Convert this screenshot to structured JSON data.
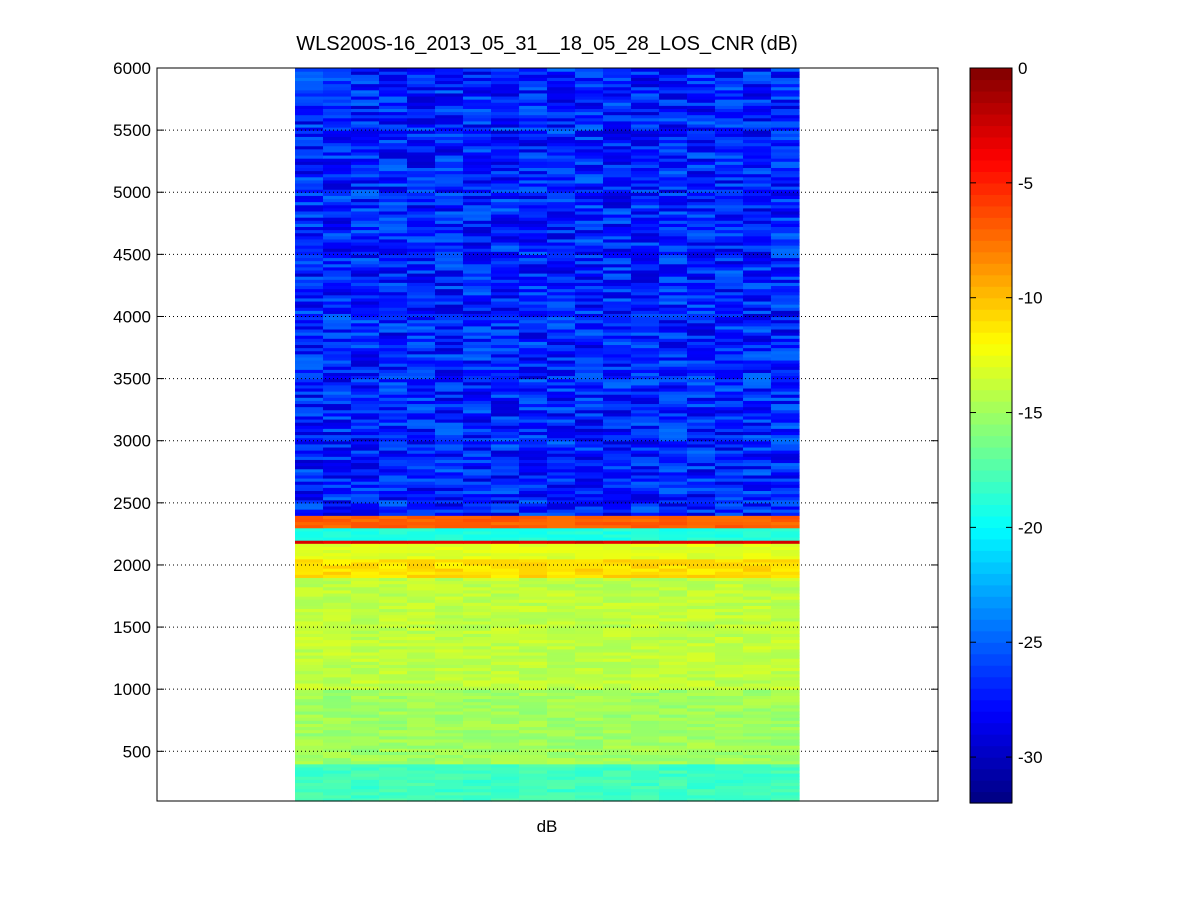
{
  "chart_data": {
    "type": "heatmap",
    "title": "WLS200S-16_2013_05_31__18_05_28_LOS_CNR (dB)",
    "xlabel": "dB",
    "ylabel": "",
    "ylim": [
      100,
      6000
    ],
    "yticks": [
      500,
      1000,
      1500,
      2000,
      2500,
      3000,
      3500,
      4000,
      4500,
      5000,
      5500,
      6000
    ],
    "grid": "horizontal dotted",
    "colormap": "jet",
    "colorbar": {
      "clim": [
        -32,
        0
      ],
      "ticks": [
        0,
        -5,
        -10,
        -15,
        -20,
        -25,
        -30
      ],
      "tick_labels": [
        "0",
        "-5",
        "-10",
        "-15",
        "-20",
        "-25",
        "-30"
      ]
    },
    "columns": 18,
    "bands": [
      {
        "range_m": [
          2400,
          6000
        ],
        "approx_db": -27
      },
      {
        "range_m": [
          2300,
          2400
        ],
        "approx_db": -7
      },
      {
        "range_m": [
          2200,
          2300
        ],
        "approx_db": -19
      },
      {
        "range_m": [
          2170,
          2200
        ],
        "approx_db": -3
      },
      {
        "range_m": [
          2050,
          2170
        ],
        "approx_db": -13
      },
      {
        "range_m": [
          1900,
          2050
        ],
        "approx_db": -11
      },
      {
        "range_m": [
          1000,
          1900
        ],
        "approx_db": -14
      },
      {
        "range_m": [
          400,
          1000
        ],
        "approx_db": -15
      },
      {
        "range_m": [
          100,
          400
        ],
        "approx_db": -18
      }
    ]
  }
}
